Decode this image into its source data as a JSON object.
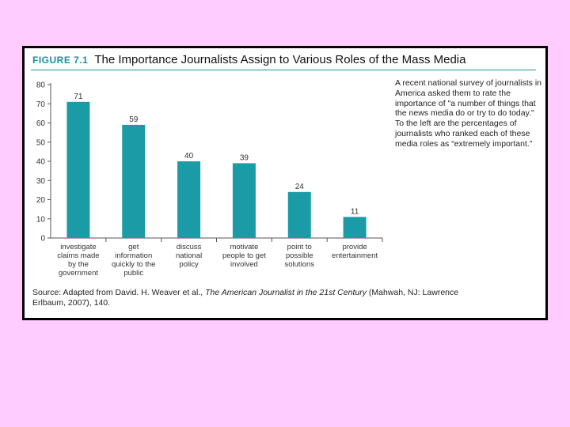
{
  "figure": {
    "label": "FIGURE 7.1",
    "title": "The Importance Journalists Assign to Various Roles of the Mass Media",
    "note": "A recent national survey of journalists in America asked them to rate the importance of \"a number of things that the news media do or try to do today.\" To the left are the percentages of journalists who ranked each of these media roles as “extremely important.”",
    "source_prefix": "Source: Adapted from David. H. Weaver et al., ",
    "source_title": "The American Journalist in the 21st Century",
    "source_suffix": " (Mahwah, NJ: Lawrence Erlbaum, 2007), 140."
  },
  "colors": {
    "bar": "#1a9ba6",
    "background": "#ffccff",
    "frame": "#000000"
  },
  "chart_data": {
    "type": "bar",
    "categories": [
      [
        "investigate",
        "claims made",
        "by the",
        "government"
      ],
      [
        "get",
        "information",
        "quickly to the",
        "public"
      ],
      [
        "discuss",
        "national",
        "policy"
      ],
      [
        "motivate",
        "people to get",
        "involved"
      ],
      [
        "point to",
        "possible",
        "solutions"
      ],
      [
        "provide",
        "entertainment"
      ]
    ],
    "values": [
      71,
      59,
      40,
      39,
      24,
      11
    ],
    "value_labels": [
      "71",
      "59",
      "40",
      "39",
      "24",
      "11"
    ],
    "ylim": [
      0,
      80
    ],
    "yticks": [
      0,
      10,
      20,
      30,
      40,
      50,
      60,
      70,
      80
    ],
    "grid": false
  }
}
